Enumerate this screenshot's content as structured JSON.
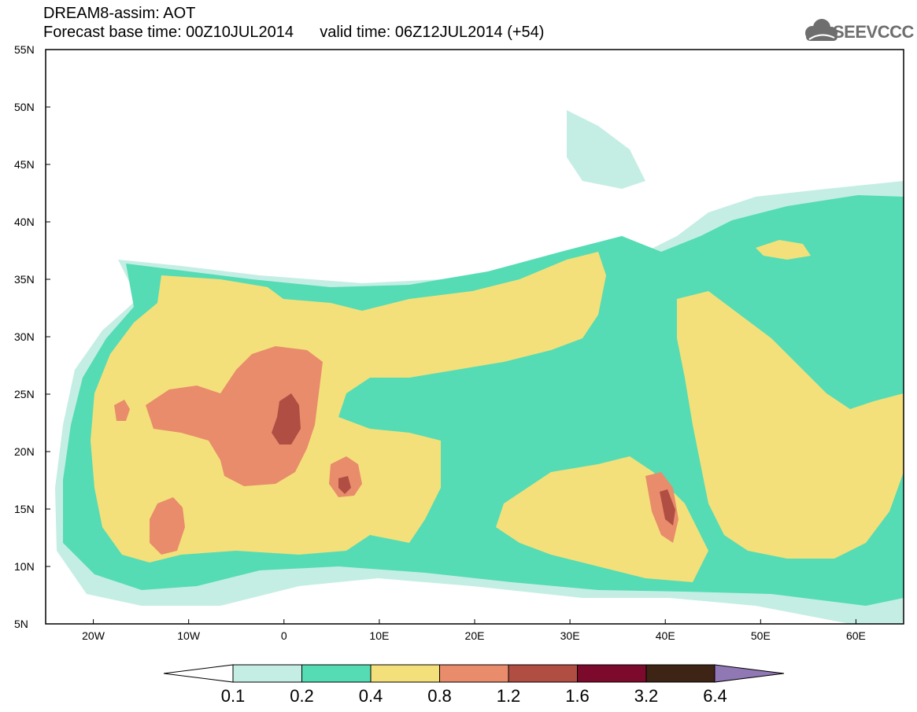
{
  "header": {
    "line1": "DREAM8-assim: AOT",
    "line2": "Forecast base time: 00Z10JUL2014",
    "valid": "valid time: 06Z12JUL2014 (+54)"
  },
  "logo": {
    "text": "SEEVCCC",
    "icon": "cloud-icon"
  },
  "map": {
    "lon_range": [
      -25,
      65
    ],
    "lat_range": [
      5,
      55
    ],
    "y_ticks": [
      "5N",
      "10N",
      "15N",
      "20N",
      "25N",
      "30N",
      "35N",
      "40N",
      "45N",
      "50N",
      "55N"
    ],
    "x_ticks": [
      "20W",
      "10W",
      "0",
      "10E",
      "20E",
      "30E",
      "40E",
      "50E",
      "60E"
    ]
  },
  "colorbar": {
    "labels": [
      "0.1",
      "0.2",
      "0.4",
      "0.8",
      "1.2",
      "1.6",
      "3.2",
      "6.4"
    ],
    "colors": [
      "#c4eee4",
      "#55dcb4",
      "#f4e07a",
      "#e88c6c",
      "#b04e44",
      "#7c0a2c",
      "#3e2414",
      "#9078b4"
    ]
  }
}
